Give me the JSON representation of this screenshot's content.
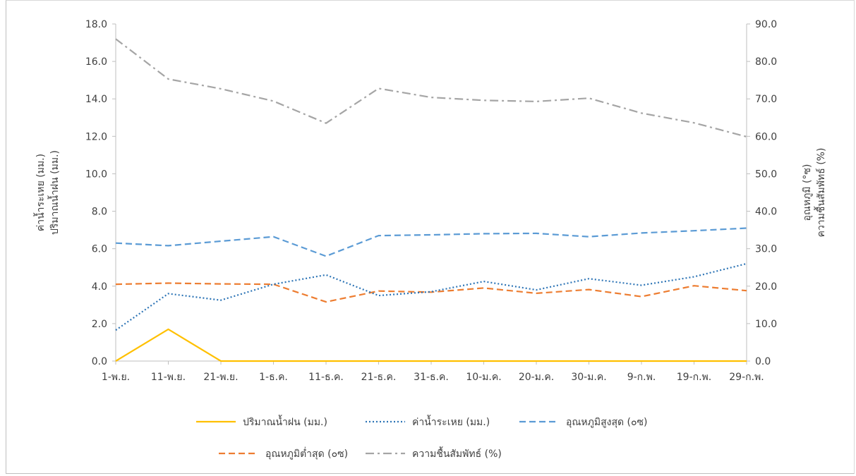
{
  "chart_data": {
    "type": "line",
    "categories": [
      "1-พ.ย.",
      "11-พ.ย.",
      "21-พ.ย.",
      "1-ธ.ค.",
      "11-ธ.ค.",
      "21-ธ.ค.",
      "31-ธ.ค.",
      "10-ม.ค.",
      "20-ม.ค.",
      "30-ม.ค.",
      "9-ก.พ.",
      "19-ก.พ.",
      "29-ก.พ."
    ],
    "y_left": {
      "label_lines": [
        "ค่าน้ำระเหย (มม.)",
        "ปริมาณน้ำฝน (มม.)"
      ],
      "ylim": [
        0,
        18
      ],
      "ticks": [
        "0.0",
        "2.0",
        "4.0",
        "6.0",
        "8.0",
        "10.0",
        "12.0",
        "14.0",
        "16.0",
        "18.0"
      ]
    },
    "y_right": {
      "label_lines": [
        "อุณหภูมิ (°ซ)",
        "ความชื้นสัมพัทธ์ (%)"
      ],
      "ylim": [
        0,
        90
      ],
      "ticks": [
        "0.0",
        "10.0",
        "20.0",
        "30.0",
        "40.0",
        "50.0",
        "60.0",
        "70.0",
        "80.0",
        "90.0"
      ]
    },
    "grid": false,
    "legend_position": "bottom",
    "series": [
      {
        "name": "ปริมาณน้ำฝน (มม.)",
        "axis": "left",
        "color": "#ffc000",
        "style": "solid",
        "values": [
          0.0,
          1.7,
          0.0,
          0.0,
          0.0,
          0.0,
          0.0,
          0.0,
          0.0,
          0.0,
          0.0,
          0.0,
          0.0
        ]
      },
      {
        "name": "ค่าน้ำระเหย (มม.)",
        "axis": "left",
        "color": "#2e75b6",
        "style": "dotted",
        "values": [
          1.65,
          3.6,
          3.25,
          4.1,
          4.6,
          3.5,
          3.7,
          4.25,
          3.8,
          4.4,
          4.05,
          4.5,
          5.2
        ]
      },
      {
        "name": "อุณหภูมิสูงสุด (๐ซ)",
        "axis": "right",
        "color": "#5b9bd5",
        "style": "dashed",
        "values": [
          31.5,
          30.8,
          32.0,
          33.2,
          28.0,
          33.5,
          33.7,
          34.0,
          34.1,
          33.2,
          34.2,
          34.8,
          35.5
        ]
      },
      {
        "name": "อุณหภูมิต่ำสุด (๐ซ)",
        "axis": "right",
        "color": "#ed7d31",
        "style": "dashed",
        "values": [
          20.5,
          20.8,
          20.6,
          20.5,
          15.8,
          18.7,
          18.4,
          19.5,
          18.1,
          19.1,
          17.2,
          20.1,
          18.8
        ]
      },
      {
        "name": "ความชื้นสัมพัทธ์ (%)",
        "axis": "right",
        "color": "#a5a5a5",
        "style": "dashdot",
        "values": [
          86.0,
          75.3,
          72.7,
          69.4,
          63.5,
          72.8,
          70.4,
          69.6,
          69.3,
          70.2,
          66.2,
          63.6,
          59.9
        ]
      }
    ],
    "legend_rows": [
      [
        0,
        1,
        2
      ],
      [
        3,
        4
      ]
    ]
  }
}
